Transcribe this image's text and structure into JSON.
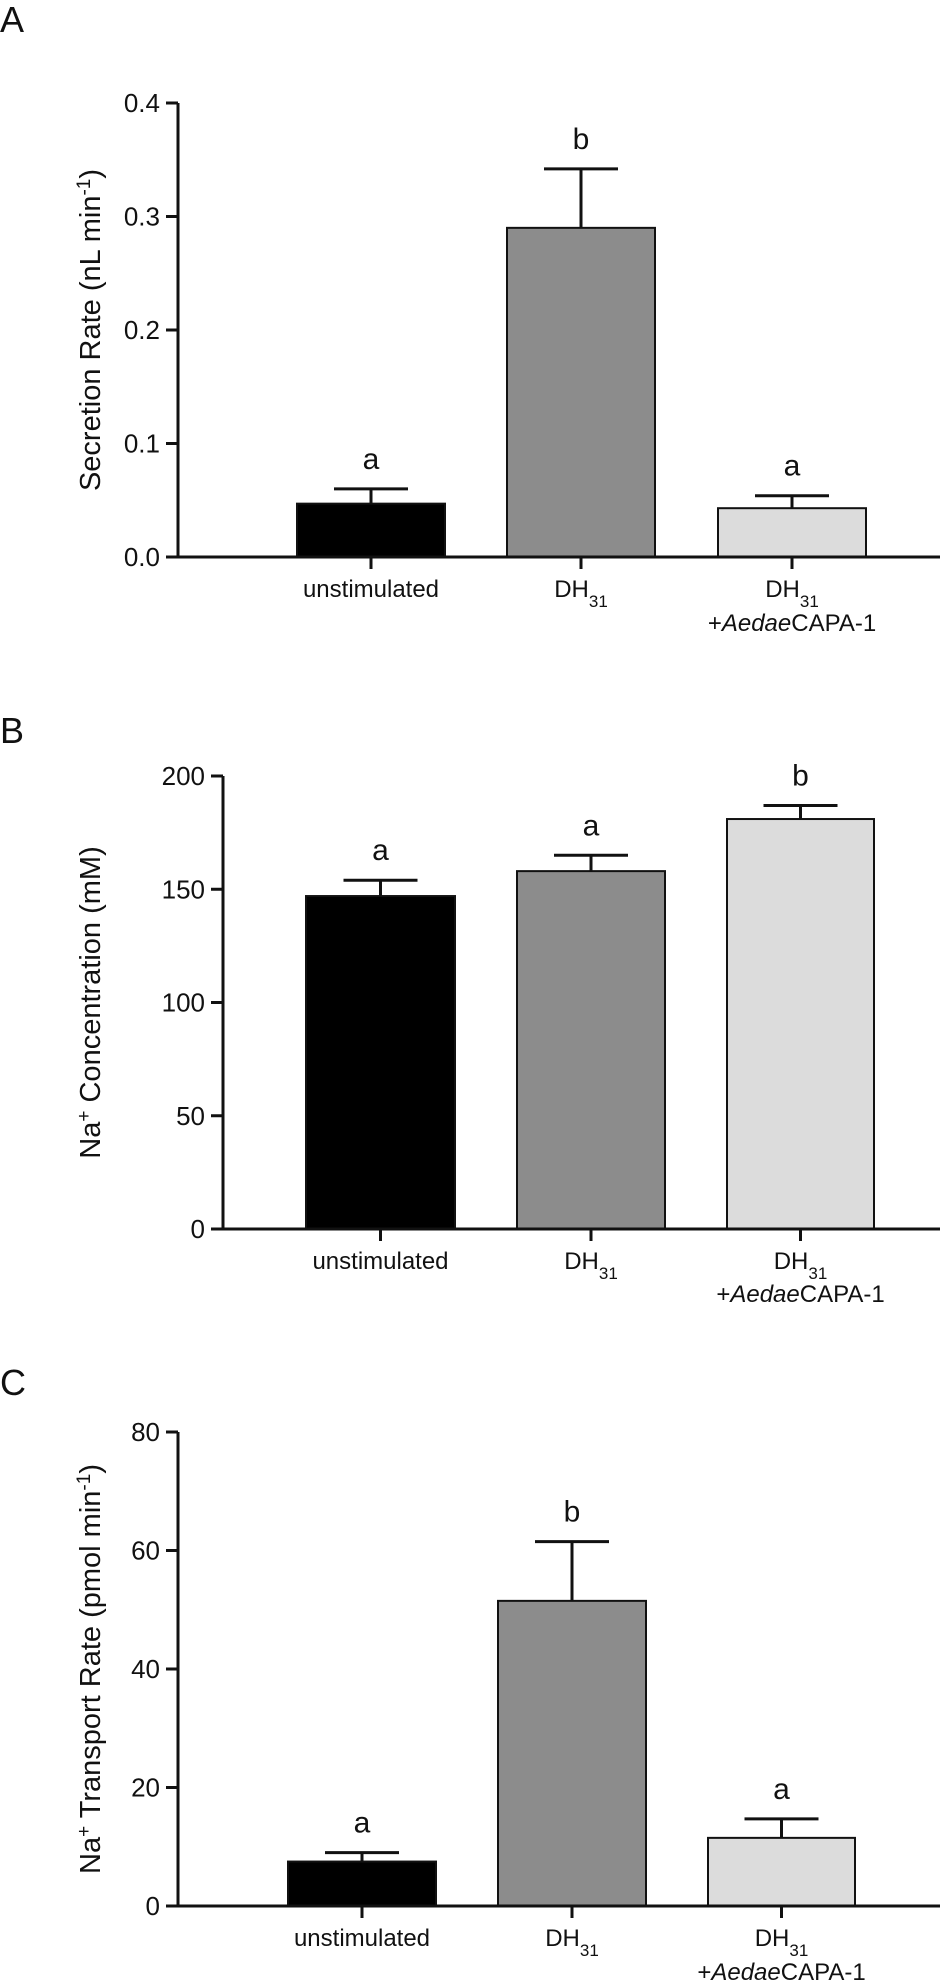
{
  "chart_data": [
    {
      "type": "bar",
      "panel": "A",
      "ylabel": "Secretion Rate (nL min",
      "ylabel_sup": "-1",
      "ylabel_end": ")",
      "ylim": [
        0,
        0.4
      ],
      "yticks": [
        0.0,
        0.1,
        0.2,
        0.3,
        0.4
      ],
      "ytick_labels": [
        "0.0",
        "0.1",
        "0.2",
        "0.3",
        "0.4"
      ],
      "categories": [
        {
          "line1": "unstimulated",
          "line1_sub": "",
          "line2_pre": "",
          "line2_italic": "",
          "line2_post": ""
        },
        {
          "line1": "DH",
          "line1_sub": "31",
          "line2_pre": "",
          "line2_italic": "",
          "line2_post": ""
        },
        {
          "line1": "DH",
          "line1_sub": "31",
          "line2_pre": "+",
          "line2_italic": "Aedae",
          "line2_post": "CAPA-1"
        }
      ],
      "values": [
        0.047,
        0.29,
        0.043
      ],
      "errors": [
        0.013,
        0.052,
        0.011
      ],
      "significance": [
        "a",
        "b",
        "a"
      ],
      "colors": [
        "#000000",
        "#8c8c8c",
        "#dcdcdc"
      ]
    },
    {
      "type": "bar",
      "panel": "B",
      "ylabel_pre": "Na",
      "ylabel_sup": "+",
      "ylabel": " Concentration (mM)",
      "ylim": [
        0,
        200
      ],
      "yticks": [
        0,
        50,
        100,
        150,
        200
      ],
      "ytick_labels": [
        "0",
        "50",
        "100",
        "150",
        "200"
      ],
      "categories": [
        {
          "line1": "unstimulated",
          "line1_sub": "",
          "line2_pre": "",
          "line2_italic": "",
          "line2_post": ""
        },
        {
          "line1": "DH",
          "line1_sub": "31",
          "line2_pre": "",
          "line2_italic": "",
          "line2_post": ""
        },
        {
          "line1": "DH",
          "line1_sub": "31",
          "line2_pre": "+",
          "line2_italic": "Aedae",
          "line2_post": "CAPA-1"
        }
      ],
      "values": [
        147,
        158,
        181
      ],
      "errors": [
        7,
        7,
        6
      ],
      "significance": [
        "a",
        "a",
        "b"
      ],
      "colors": [
        "#000000",
        "#8c8c8c",
        "#dcdcdc"
      ]
    },
    {
      "type": "bar",
      "panel": "C",
      "ylabel_pre": "Na",
      "ylabel_sup": "+",
      "ylabel": " Transport Rate (pmol min",
      "ylabel_sup2": "-1",
      "ylabel_end": ")",
      "ylim": [
        0,
        80
      ],
      "yticks": [
        0,
        20,
        40,
        60,
        80
      ],
      "ytick_labels": [
        "0",
        "20",
        "40",
        "60",
        "80"
      ],
      "categories": [
        {
          "line1": "unstimulated",
          "line1_sub": "",
          "line2_pre": "",
          "line2_italic": "",
          "line2_post": ""
        },
        {
          "line1": "DH",
          "line1_sub": "31",
          "line2_pre": "",
          "line2_italic": "",
          "line2_post": ""
        },
        {
          "line1": "DH",
          "line1_sub": "31",
          "line2_pre": "+",
          "line2_italic": "Aedae",
          "line2_post": "CAPA-1"
        }
      ],
      "values": [
        7.5,
        51.5,
        11.5
      ],
      "errors": [
        1.5,
        10,
        3.2
      ],
      "significance": [
        "a",
        "b",
        "a"
      ],
      "colors": [
        "#000000",
        "#8c8c8c",
        "#dcdcdc"
      ]
    }
  ]
}
